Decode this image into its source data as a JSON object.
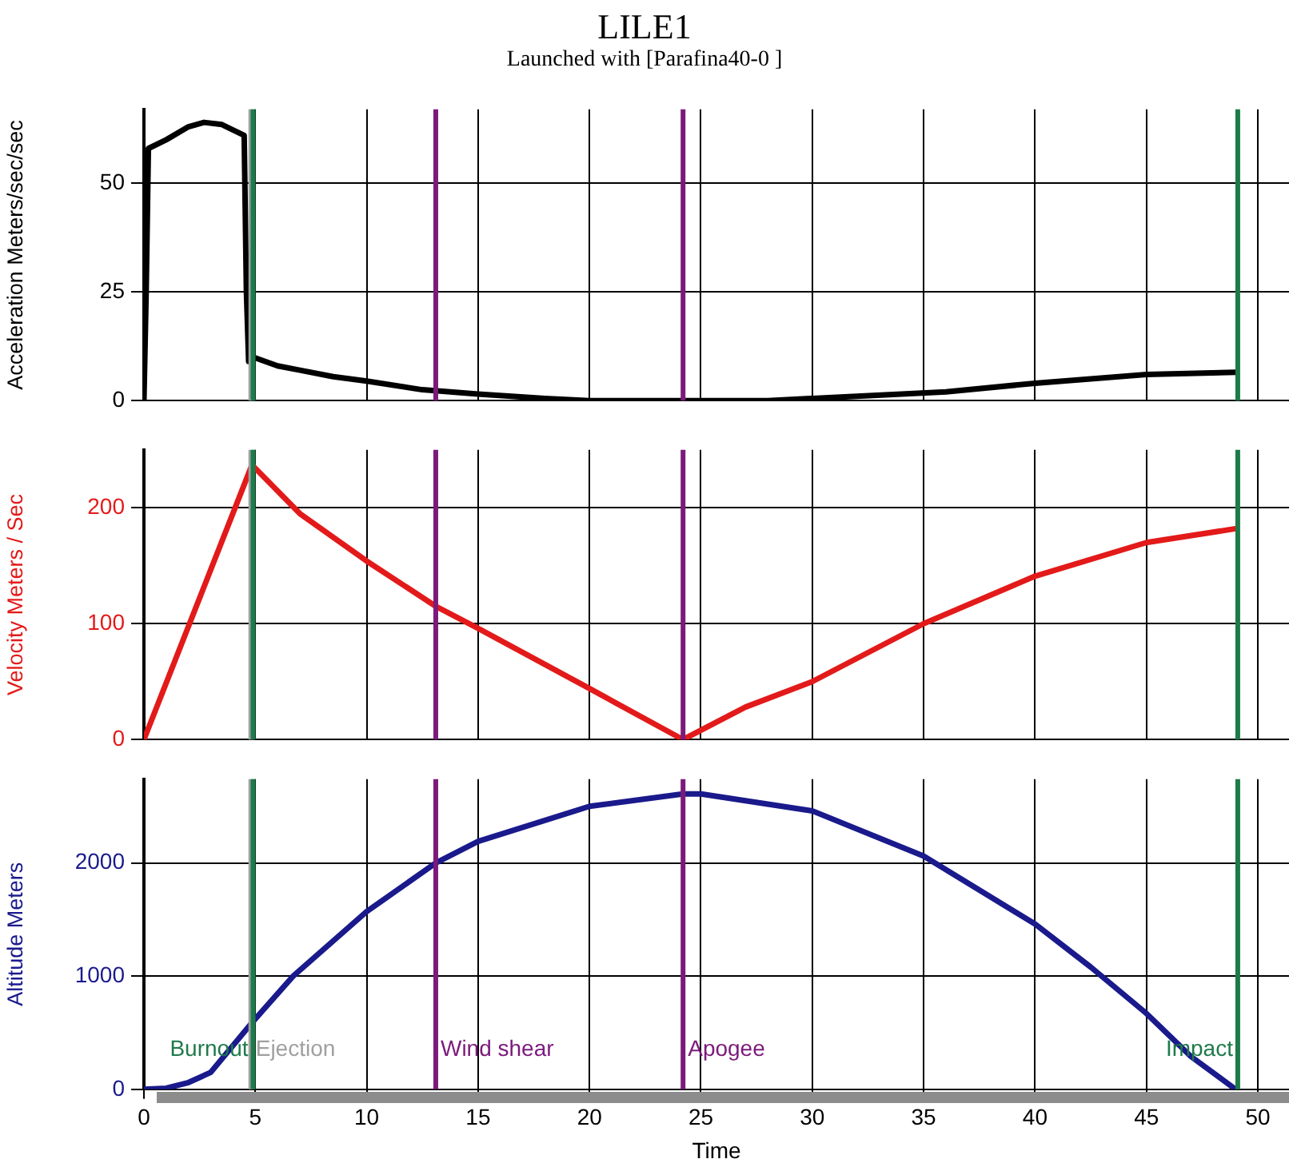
{
  "chart_data": [
    {
      "type": "line",
      "title": "LILE1",
      "subtitle": "Launched with [Parafina40-0   ]",
      "ylabel": "Acceleration Meters/sec/sec",
      "xlim": [
        0,
        51.4
      ],
      "xticks": [
        0,
        5,
        10,
        15,
        20,
        25,
        30,
        35,
        40,
        45,
        50
      ],
      "ylim": [
        0,
        67
      ],
      "yticks": [
        0,
        25,
        50
      ],
      "grid": true,
      "tick_labels": "y",
      "legend": false,
      "series": [
        {
          "color": "#000000",
          "x": [
            0,
            0.1,
            0.2,
            1,
            2,
            2.7,
            3.5,
            4.5,
            4.6,
            4.7,
            4.9,
            6,
            7,
            8.5,
            10,
            12.5,
            15,
            18,
            20,
            24,
            28,
            32,
            36,
            40,
            45,
            49
          ],
          "values": [
            0,
            25,
            58,
            60,
            63,
            64,
            63.5,
            61,
            25,
            9,
            10,
            8,
            7,
            5.5,
            4.5,
            2.5,
            1.5,
            0.5,
            0,
            0,
            0,
            1,
            2,
            4,
            6,
            6.5
          ]
        }
      ],
      "ref_lines": [
        {
          "axis": "x",
          "value": 4.8,
          "color": "#a0a0a0"
        },
        {
          "axis": "x",
          "value": 4.9,
          "color": "#1e7a4a"
        },
        {
          "axis": "x",
          "value": 13.1,
          "color": "#7b1a7b"
        },
        {
          "axis": "x",
          "value": 24.2,
          "color": "#7b1a7b"
        },
        {
          "axis": "x",
          "value": 49.1,
          "color": "#1e7a4a"
        }
      ]
    },
    {
      "type": "line",
      "ylabel": "Velocity Meters / Sec",
      "xlim": [
        0,
        51.4
      ],
      "xticks": [
        0,
        5,
        10,
        15,
        20,
        25,
        30,
        35,
        40,
        45,
        50
      ],
      "ylim": [
        0,
        250
      ],
      "yticks": [
        0,
        100,
        200
      ],
      "grid": true,
      "tick_labels": "y",
      "legend": false,
      "series": [
        {
          "color": "#e31a1a",
          "x": [
            0,
            4.85,
            7,
            10,
            13.1,
            15,
            20,
            24.2,
            27,
            30,
            35,
            40,
            45,
            49
          ],
          "values": [
            0,
            237,
            195,
            154,
            115,
            96,
            44,
            0,
            28,
            50,
            100,
            141,
            170,
            182
          ]
        }
      ],
      "ref_lines": [
        {
          "axis": "x",
          "value": 4.8,
          "color": "#a0a0a0"
        },
        {
          "axis": "x",
          "value": 4.9,
          "color": "#1e7a4a"
        },
        {
          "axis": "x",
          "value": 13.1,
          "color": "#7b1a7b"
        },
        {
          "axis": "x",
          "value": 24.2,
          "color": "#7b1a7b"
        },
        {
          "axis": "x",
          "value": 49.1,
          "color": "#1e7a4a"
        }
      ]
    },
    {
      "type": "line",
      "xlabel": "Time",
      "ylabel": "Altitude Meters",
      "xlim": [
        0,
        51.4
      ],
      "xticks": [
        0,
        5,
        10,
        15,
        20,
        25,
        30,
        35,
        40,
        45,
        50
      ],
      "ylim": [
        0,
        2740
      ],
      "yticks": [
        0,
        1000,
        2000
      ],
      "grid": true,
      "legend": false,
      "series": [
        {
          "color": "#1a1a8c",
          "x": [
            0,
            1,
            2,
            3,
            4.9,
            6.7,
            10,
            13.1,
            15,
            20,
            24.2,
            25,
            30,
            35,
            40,
            42.5,
            45,
            47,
            49
          ],
          "values": [
            0,
            10,
            60,
            150,
            600,
            1000,
            1570,
            2000,
            2190,
            2500,
            2610,
            2610,
            2460,
            2060,
            1460,
            1080,
            670,
            290,
            0
          ]
        }
      ],
      "ref_lines": [
        {
          "axis": "x",
          "value": 4.8,
          "label": "Ejection",
          "color": "#a0a0a0"
        },
        {
          "axis": "x",
          "value": 4.9,
          "label": "Burnout",
          "color": "#1e7a4a"
        },
        {
          "axis": "x",
          "value": 13.1,
          "label": "Wind shear",
          "color": "#7b1a7b"
        },
        {
          "axis": "x",
          "value": 24.2,
          "label": "Apogee",
          "color": "#7b1a7b"
        },
        {
          "axis": "x",
          "value": 49.1,
          "label": "Impact",
          "color": "#1e7a4a"
        }
      ]
    }
  ]
}
